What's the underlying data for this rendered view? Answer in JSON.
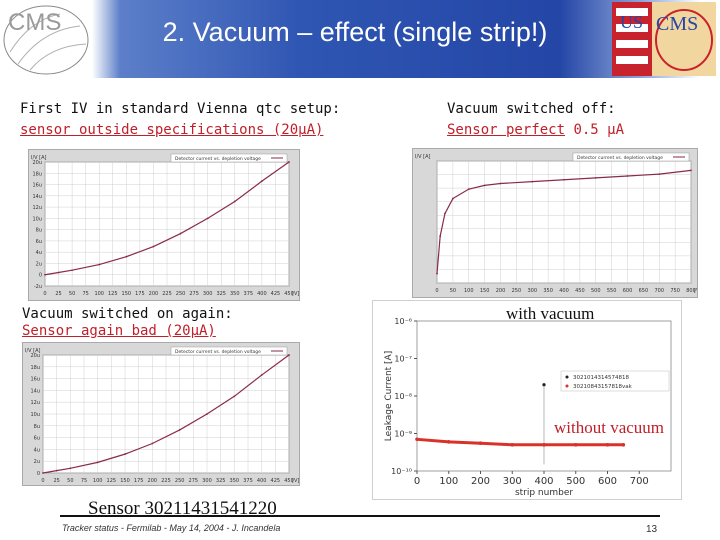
{
  "header": {
    "title": "2. Vacuum – effect (single strip!)",
    "left_logo": "CMS",
    "right_logo_us": "US",
    "right_logo_cms": "CMS"
  },
  "panels": {
    "top_left": {
      "caption_line1": "First IV in standard Vienna qtc setup:",
      "caption_line2": "sensor outside specifications (20µA)",
      "plot_legend": "Detector current vs. depletion voltage",
      "plot_ylabel": "I/V [A]",
      "plot_xunit": "[V]"
    },
    "top_right": {
      "caption_line1": "Vacuum switched off:",
      "caption_line2_red": "Sensor perfect",
      "caption_line2_value": " 0.5 µA",
      "plot_legend": "Detector current vs. depletion voltage",
      "plot_ylabel": "I/V [A]",
      "plot_xunit": "[V]"
    },
    "bottom_left": {
      "caption_line1": "Vacuum switched on again:",
      "caption_line2": "Sensor again bad (20µA)",
      "plot_legend": "Detector current vs. depletion voltage",
      "plot_ylabel": "I/V [A]",
      "plot_xunit": "[V]"
    },
    "bottom_right": {
      "label_with": "with vacuum",
      "label_without": "without vacuum",
      "ylabel": "Leakage Current [A]",
      "xlabel": "strip number",
      "legend": [
        "3021014314574818",
        "30210843157818vak"
      ]
    }
  },
  "footer": {
    "sensor_id": "Sensor 30211431541220",
    "note": "Tracker status - Fermilab - May 14, 2004 -  J. Incandela",
    "page": "13"
  },
  "colors": {
    "header_blue": "#2446a6",
    "curve": "#8a2a4a",
    "red_text": "#c0202a",
    "scatter_red": "#d8322a"
  },
  "chart_data": [
    {
      "type": "line",
      "title": "",
      "xlabel": "[V]",
      "ylabel": "I/V [A]",
      "x": [
        0,
        25,
        50,
        75,
        100,
        125,
        150,
        175,
        200,
        225,
        250,
        275,
        300,
        325,
        350,
        375,
        400,
        425,
        450
      ],
      "xlim": [
        0,
        450
      ],
      "x_ticks": [
        "0",
        "25",
        "50",
        "75",
        "100",
        "125",
        "150",
        "175",
        "200",
        "225",
        "250",
        "275",
        "300",
        "325",
        "350",
        "375",
        "400",
        "425",
        "450"
      ],
      "y_ticks": [
        "20u",
        "18u",
        "16u",
        "14u",
        "12u",
        "10u",
        "8u",
        "6u",
        "4u",
        "2u",
        "0",
        "-2u"
      ],
      "series": [
        {
          "name": "",
          "x": [
            0,
            25,
            50,
            100,
            150,
            200,
            250,
            300,
            350,
            400,
            450
          ],
          "y": [
            0,
            0.4,
            0.8,
            1.8,
            3.2,
            5.0,
            7.3,
            10.0,
            13.0,
            16.6,
            20.0
          ]
        }
      ],
      "ylim": [
        -2,
        20
      ]
    },
    {
      "type": "line",
      "title": "",
      "xlabel": "[V]",
      "ylabel": "I/V [A]",
      "xlim": [
        0,
        800
      ],
      "x_ticks": [
        "0",
        "50",
        "100",
        "150",
        "200",
        "250",
        "300",
        "350",
        "400",
        "450",
        "500",
        "550",
        "600",
        "650",
        "700",
        "750",
        "800"
      ],
      "series": [
        {
          "name": "",
          "x": [
            0,
            10,
            25,
            50,
            100,
            150,
            200,
            300,
            400,
            500,
            600,
            700,
            800
          ],
          "y": [
            0,
            200,
            320,
            400,
            450,
            470,
            480,
            490,
            500,
            510,
            520,
            530,
            550
          ]
        }
      ],
      "ylim": [
        -50,
        600
      ]
    },
    {
      "type": "line",
      "title": "",
      "xlabel": "[V]",
      "ylabel": "I/V [A]",
      "xlim": [
        0,
        450
      ],
      "x_ticks": [
        "0",
        "25",
        "50",
        "75",
        "100",
        "125",
        "150",
        "175",
        "200",
        "225",
        "250",
        "275",
        "300",
        "325",
        "350",
        "375",
        "400",
        "425",
        "450"
      ],
      "y_ticks": [
        "20u",
        "18u",
        "16u",
        "14u",
        "12u",
        "10u",
        "8u",
        "6u",
        "4u",
        "2u",
        "0"
      ],
      "series": [
        {
          "name": "",
          "x": [
            0,
            25,
            50,
            100,
            150,
            200,
            250,
            300,
            350,
            400,
            450
          ],
          "y": [
            0,
            0.4,
            0.8,
            1.8,
            3.2,
            5.0,
            7.3,
            10.0,
            13.0,
            16.6,
            20.0
          ]
        }
      ],
      "ylim": [
        0,
        20
      ]
    },
    {
      "type": "scatter",
      "title": "",
      "xlabel": "strip number",
      "ylabel": "Leakage Current [A]",
      "xlim": [
        0,
        800
      ],
      "x_ticks": [
        "0",
        "100",
        "200",
        "300",
        "400",
        "500",
        "600",
        "700"
      ],
      "y_ticks": [
        "10⁻⁶",
        "10⁻⁷",
        "10⁻⁸",
        "10⁻⁹",
        "10⁻¹⁰"
      ],
      "y_scale": "log",
      "ylim": [
        1e-10,
        1e-06
      ],
      "series": [
        {
          "name": "with vacuum",
          "x": [
            400
          ],
          "y": [
            2e-08
          ]
        },
        {
          "name": "without vacuum",
          "x": [
            0,
            100,
            200,
            300,
            400,
            500,
            600,
            650
          ],
          "y": [
            7e-10,
            6e-10,
            5.5e-10,
            5e-10,
            5e-10,
            5e-10,
            5e-10,
            5e-10
          ]
        }
      ]
    }
  ]
}
